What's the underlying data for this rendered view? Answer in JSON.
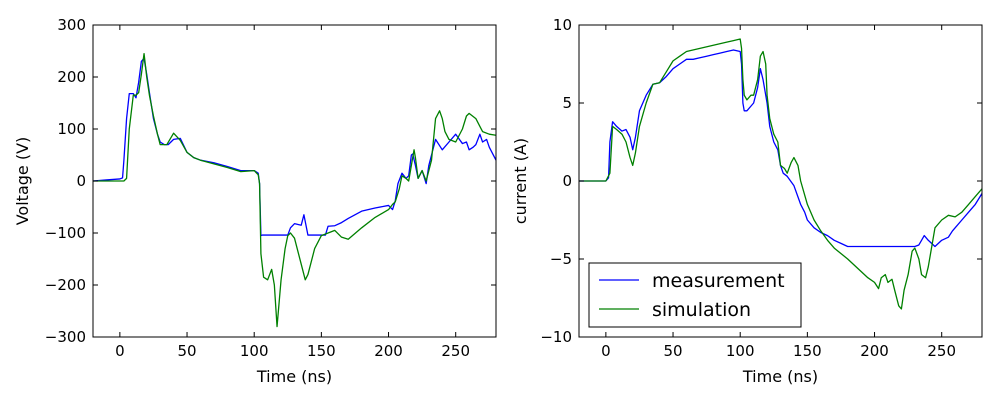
{
  "chart_data": [
    {
      "type": "line",
      "xlabel": "Time (ns)",
      "ylabel": "Voltage (V)",
      "xlim": [
        -20,
        280
      ],
      "ylim": [
        -300,
        300
      ],
      "xticks": [
        0,
        50,
        100,
        150,
        200,
        250
      ],
      "yticks": [
        -300,
        -200,
        -100,
        0,
        100,
        200,
        300
      ],
      "xtick_labels": [
        "0",
        "50",
        "100",
        "150",
        "200",
        "250"
      ],
      "ytick_labels": [
        "−300",
        "−200",
        "−100",
        "0",
        "100",
        "200",
        "300"
      ],
      "grid": false,
      "series": [
        {
          "name": "measurement",
          "color": "#0000ff",
          "x": [
            -20,
            -10,
            0,
            2,
            3,
            5,
            7,
            10,
            12,
            14,
            16,
            18,
            20,
            22,
            25,
            28,
            30,
            33,
            36,
            40,
            45,
            50,
            55,
            60,
            70,
            80,
            90,
            100,
            103,
            104,
            105,
            106,
            107,
            115,
            120,
            125,
            127,
            130,
            135,
            137,
            140,
            145,
            150,
            153,
            155,
            160,
            165,
            170,
            180,
            190,
            200,
            203,
            205,
            207,
            210,
            213,
            215,
            217,
            218,
            220,
            222,
            225,
            228,
            230,
            232,
            235,
            240,
            245,
            250,
            255,
            258,
            260,
            263,
            265,
            268,
            270,
            273,
            275,
            280
          ],
          "y": [
            0,
            2,
            4,
            6,
            40,
            120,
            168,
            168,
            160,
            190,
            230,
            236,
            205,
            170,
            120,
            90,
            75,
            70,
            70,
            80,
            82,
            55,
            45,
            40,
            35,
            28,
            20,
            20,
            15,
            -5,
            -105,
            -104,
            -104,
            -104,
            -104,
            -104,
            -90,
            -82,
            -85,
            -65,
            -104,
            -104,
            -104,
            -104,
            -87,
            -86,
            -80,
            -72,
            -58,
            -52,
            -47,
            -55,
            -38,
            -5,
            15,
            5,
            10,
            50,
            52,
            30,
            5,
            20,
            -5,
            30,
            50,
            80,
            60,
            75,
            90,
            72,
            75,
            60,
            65,
            70,
            90,
            75,
            80,
            65,
            40
          ]
        },
        {
          "name": "simulation",
          "color": "#008000",
          "x": [
            -20,
            -10,
            0,
            3,
            5,
            7,
            10,
            12,
            14,
            16,
            18,
            20,
            22,
            25,
            28,
            30,
            35,
            40,
            45,
            50,
            55,
            60,
            70,
            80,
            90,
            100,
            103,
            104,
            105,
            107,
            110,
            113,
            115,
            117,
            120,
            123,
            125,
            127,
            130,
            135,
            138,
            140,
            145,
            150,
            155,
            160,
            165,
            170,
            180,
            190,
            200,
            203,
            205,
            208,
            210,
            213,
            215,
            217,
            219,
            220,
            222,
            225,
            228,
            230,
            232,
            235,
            238,
            240,
            242,
            245,
            250,
            255,
            258,
            260,
            265,
            270,
            275,
            280
          ],
          "y": [
            0,
            0,
            0,
            0,
            5,
            100,
            165,
            165,
            170,
            205,
            245,
            200,
            165,
            125,
            90,
            70,
            70,
            92,
            78,
            55,
            45,
            40,
            33,
            26,
            18,
            20,
            12,
            -5,
            -140,
            -185,
            -190,
            -170,
            -200,
            -280,
            -190,
            -130,
            -105,
            -100,
            -110,
            -160,
            -190,
            -180,
            -130,
            -105,
            -100,
            -95,
            -108,
            -112,
            -90,
            -70,
            -55,
            -45,
            -40,
            -15,
            10,
            5,
            0,
            30,
            60,
            45,
            5,
            20,
            0,
            20,
            40,
            120,
            135,
            120,
            95,
            80,
            75,
            100,
            125,
            130,
            120,
            95,
            90,
            88
          ]
        }
      ]
    },
    {
      "type": "line",
      "xlabel": "Time (ns)",
      "ylabel": "current (A)",
      "xlim": [
        -20,
        280
      ],
      "ylim": [
        -10,
        10
      ],
      "xticks": [
        0,
        50,
        100,
        150,
        200,
        250
      ],
      "yticks": [
        -10,
        -5,
        0,
        5,
        10
      ],
      "xtick_labels": [
        "0",
        "50",
        "100",
        "150",
        "200",
        "250"
      ],
      "ytick_labels": [
        "−10",
        "−5",
        "0",
        "5",
        "10"
      ],
      "grid": false,
      "legend_position": "lower-left",
      "legend": [
        "measurement",
        "simulation"
      ],
      "series": [
        {
          "name": "measurement",
          "color": "#0000ff",
          "x": [
            -20,
            -10,
            0,
            2,
            3,
            5,
            8,
            12,
            15,
            18,
            20,
            22,
            25,
            30,
            35,
            40,
            45,
            50,
            55,
            60,
            65,
            70,
            75,
            80,
            85,
            90,
            95,
            100,
            101,
            102,
            103,
            105,
            108,
            110,
            113,
            115,
            117,
            119,
            120,
            122,
            125,
            128,
            130,
            132,
            135,
            140,
            145,
            148,
            150,
            155,
            160,
            165,
            170,
            175,
            180,
            183,
            185,
            190,
            200,
            210,
            220,
            230,
            233,
            235,
            237,
            240,
            245,
            250,
            255,
            258,
            260,
            265,
            270,
            275,
            280
          ],
          "y": [
            0,
            0,
            0,
            0.2,
            2.5,
            3.8,
            3.5,
            3.2,
            3.3,
            2.8,
            2.0,
            2.8,
            4.5,
            5.5,
            6.2,
            6.3,
            6.7,
            7.2,
            7.5,
            7.8,
            7.8,
            7.9,
            8.0,
            8.1,
            8.2,
            8.3,
            8.4,
            8.3,
            7.5,
            5.0,
            4.5,
            4.5,
            4.8,
            5.0,
            6.0,
            7.2,
            6.5,
            5.5,
            5.0,
            3.5,
            2.5,
            2.0,
            1.0,
            0.5,
            0.3,
            -0.3,
            -1.5,
            -2.0,
            -2.5,
            -3.0,
            -3.3,
            -3.5,
            -3.8,
            -4.0,
            -4.2,
            -4.2,
            -4.2,
            -4.2,
            -4.2,
            -4.2,
            -4.2,
            -4.2,
            -4.1,
            -3.8,
            -3.5,
            -3.8,
            -4.2,
            -3.8,
            -3.6,
            -3.2,
            -3.0,
            -2.5,
            -2.0,
            -1.5,
            -0.8
          ]
        },
        {
          "name": "simulation",
          "color": "#008000",
          "x": [
            -20,
            -10,
            0,
            3,
            5,
            8,
            12,
            15,
            18,
            20,
            22,
            25,
            30,
            35,
            40,
            45,
            50,
            55,
            60,
            70,
            80,
            90,
            95,
            100,
            101,
            102,
            103,
            105,
            108,
            110,
            113,
            115,
            117,
            119,
            120,
            122,
            125,
            128,
            130,
            133,
            135,
            138,
            140,
            143,
            145,
            150,
            155,
            160,
            165,
            170,
            180,
            190,
            195,
            200,
            203,
            205,
            208,
            210,
            213,
            215,
            218,
            220,
            222,
            225,
            228,
            230,
            233,
            235,
            238,
            240,
            245,
            250,
            255,
            260,
            265,
            270,
            275,
            280
          ],
          "y": [
            0,
            0,
            0,
            0.5,
            3.5,
            3.3,
            3.0,
            2.5,
            1.5,
            1.0,
            1.8,
            3.5,
            5.0,
            6.2,
            6.3,
            7.0,
            7.7,
            8.0,
            8.3,
            8.5,
            8.7,
            8.9,
            9.0,
            9.1,
            8.5,
            6.5,
            5.5,
            5.2,
            5.5,
            5.5,
            6.5,
            8.0,
            8.3,
            7.5,
            5.5,
            4.0,
            3.0,
            2.5,
            1.0,
            0.8,
            0.5,
            1.2,
            1.5,
            1.0,
            0.0,
            -1.5,
            -2.5,
            -3.2,
            -3.8,
            -4.3,
            -5.0,
            -5.8,
            -6.2,
            -6.5,
            -6.9,
            -6.2,
            -6.0,
            -6.5,
            -6.3,
            -7.0,
            -8.0,
            -8.2,
            -7.0,
            -6.0,
            -4.5,
            -4.3,
            -5.0,
            -6.0,
            -6.2,
            -5.5,
            -3.0,
            -2.5,
            -2.2,
            -2.3,
            -2.0,
            -1.5,
            -1.0,
            -0.5
          ]
        }
      ]
    }
  ]
}
